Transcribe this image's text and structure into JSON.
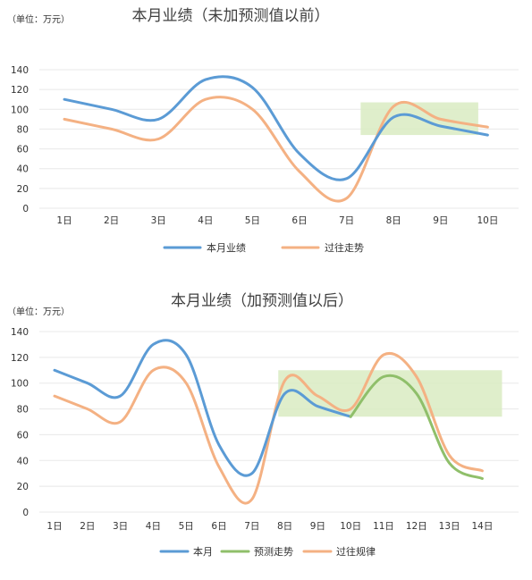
{
  "chart_data": [
    {
      "type": "line",
      "title": "本月业绩（未加预测值以前）",
      "unit_label": "（单位：万元）",
      "categories": [
        "1日",
        "2日",
        "3日",
        "4日",
        "5日",
        "6日",
        "7日",
        "8日",
        "9日",
        "10日"
      ],
      "ylim": [
        0,
        140
      ],
      "yticks": [
        0,
        20,
        40,
        60,
        80,
        100,
        120,
        140
      ],
      "grid": true,
      "legend_position": "bottom",
      "series": [
        {
          "name": "本月业绩",
          "color": "#5b9bd5",
          "x": [
            1,
            2,
            3,
            4,
            5,
            6,
            7,
            8,
            9,
            10
          ],
          "values": [
            110,
            100,
            90,
            130,
            122,
            55,
            30,
            92,
            83,
            74
          ]
        },
        {
          "name": "过往走势",
          "color": "#f4b183",
          "x": [
            1,
            2,
            3,
            4,
            5,
            6,
            7,
            8,
            9,
            10
          ],
          "values": [
            90,
            80,
            70,
            110,
            100,
            37,
            10,
            103,
            90,
            82
          ]
        }
      ],
      "highlight": {
        "x_from": 7.3,
        "x_to": 9.8,
        "y_from": 74,
        "y_to": 107,
        "color": "#d9ebc2"
      }
    },
    {
      "type": "line",
      "title": "本月业绩（加预测值以后）",
      "unit_label": "（单位：万元）",
      "categories": [
        "1日",
        "2日",
        "3日",
        "4日",
        "5日",
        "6日",
        "7日",
        "8日",
        "9日",
        "10日",
        "11日",
        "12日",
        "13日",
        "14日"
      ],
      "ylim": [
        0,
        140
      ],
      "yticks": [
        0,
        20,
        40,
        60,
        80,
        100,
        120,
        140
      ],
      "grid": true,
      "legend_position": "bottom",
      "series": [
        {
          "name": "本月",
          "color": "#5b9bd5",
          "x": [
            1,
            2,
            3,
            4,
            5,
            6,
            7,
            8,
            9,
            10
          ],
          "values": [
            110,
            100,
            90,
            130,
            122,
            52,
            30,
            92,
            82,
            74
          ]
        },
        {
          "name": "预测走势",
          "color": "#8fbf6a",
          "x": [
            10,
            11,
            12,
            13,
            14
          ],
          "values": [
            74,
            105,
            92,
            38,
            26
          ]
        },
        {
          "name": "过往规律",
          "color": "#f4b183",
          "x": [
            1,
            2,
            3,
            4,
            5,
            6,
            7,
            8,
            9,
            10,
            11,
            12,
            13,
            14
          ],
          "values": [
            90,
            80,
            70,
            110,
            100,
            35,
            10,
            102,
            90,
            80,
            122,
            105,
            44,
            32
          ]
        }
      ],
      "highlight": {
        "x_from": 7.8,
        "x_to": 14.6,
        "y_from": 74,
        "y_to": 110,
        "color": "#d9ebc2"
      }
    }
  ]
}
